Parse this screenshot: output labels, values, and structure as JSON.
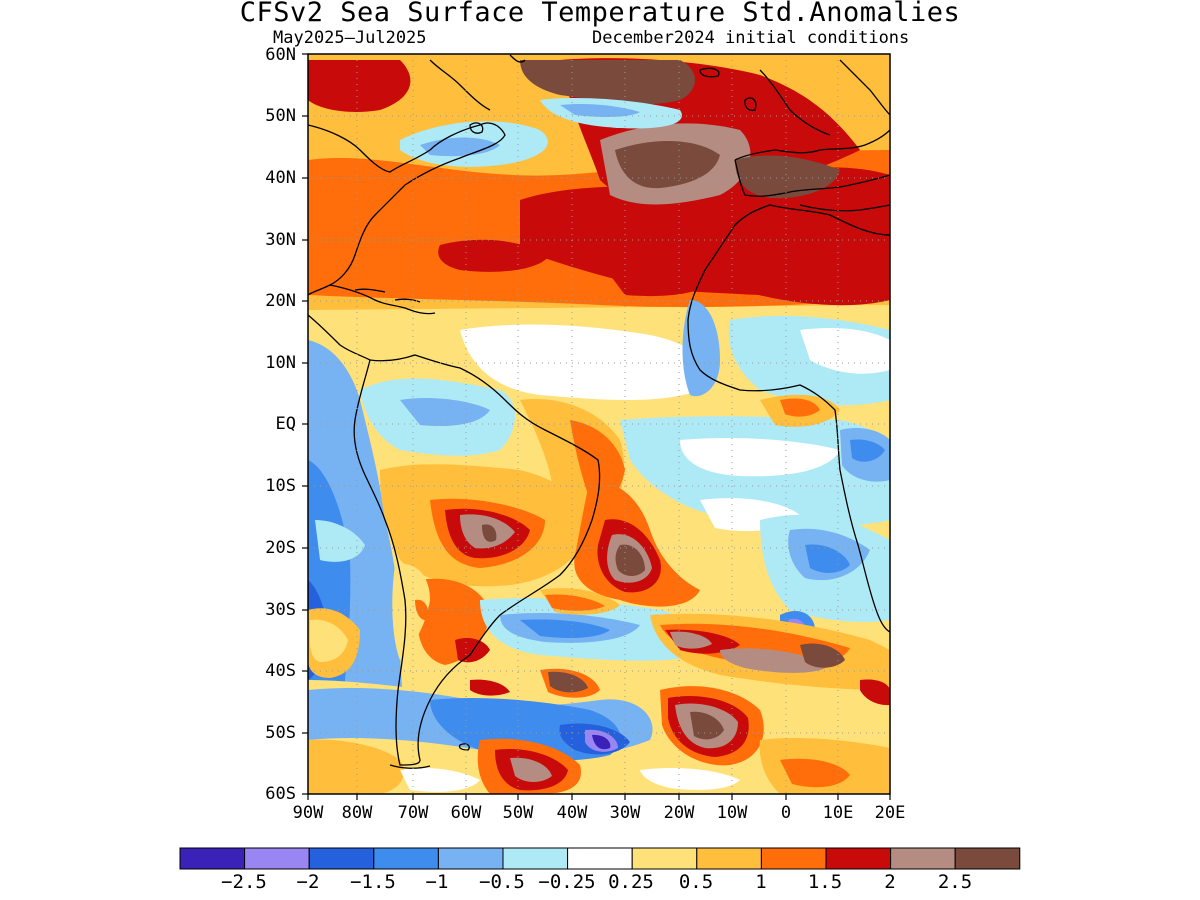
{
  "title": "CFSv2 Sea Surface Temperature Std.Anomalies",
  "subtitle_period": "May2025–Jul2025",
  "subtitle_init": "December2024 initial conditions",
  "lat_labels": [
    "60N",
    "50N",
    "40N",
    "30N",
    "20N",
    "10N",
    "EQ",
    "10S",
    "20S",
    "30S",
    "40S",
    "50S",
    "60S"
  ],
  "lon_labels": [
    "90W",
    "80W",
    "70W",
    "60W",
    "50W",
    "40W",
    "30W",
    "20W",
    "10W",
    "0",
    "10E",
    "20E"
  ],
  "colorbar": {
    "colors": [
      "#3a22b8",
      "#9a86f2",
      "#2561dc",
      "#3d8cee",
      "#77b2f2",
      "#aeeaf5",
      "#ffffff",
      "#ffe17a",
      "#ffbe3c",
      "#ff6e0a",
      "#c80a0a",
      "#b48c82",
      "#7a4b3c"
    ],
    "labels": [
      "−2.5",
      "−2",
      "−1.5",
      "−1",
      "−0.5",
      "−0.25",
      "0.25",
      "0.5",
      "1",
      "1.5",
      "2",
      "2.5"
    ]
  }
}
